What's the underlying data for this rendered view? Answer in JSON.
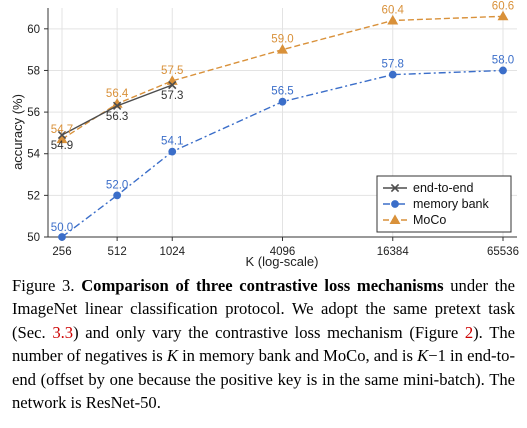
{
  "chart_data": {
    "type": "line",
    "title": "",
    "xlabel": "K (log-scale)",
    "ylabel": "accuracy (%)",
    "xscale": "log",
    "x_ticks": [
      256,
      512,
      1024,
      4096,
      16384,
      65536
    ],
    "x_tick_labels": [
      "256",
      "512",
      "1024",
      "4096",
      "16384",
      "65536"
    ],
    "ylim": [
      50,
      61
    ],
    "y_ticks": [
      50,
      52,
      54,
      56,
      58,
      60
    ],
    "y_tick_labels": [
      "50",
      "52",
      "54",
      "56",
      "58",
      "60"
    ],
    "grid": true,
    "legend_position": "lower-right",
    "series": [
      {
        "name": "end-to-end",
        "color": "#4d4d4d",
        "marker": "x",
        "line_style": "solid",
        "x": [
          256,
          512,
          1024
        ],
        "values": [
          54.9,
          56.3,
          57.3
        ],
        "labels": [
          "54.9",
          "56.3",
          "57.3"
        ]
      },
      {
        "name": "memory bank",
        "color": "#3b6ec9",
        "marker": "circle",
        "line_style": "dashdot",
        "x": [
          256,
          512,
          1024,
          4096,
          16384,
          65536
        ],
        "values": [
          50.0,
          52.0,
          54.1,
          56.5,
          57.8,
          58.0
        ],
        "labels": [
          "50.0",
          "52.0",
          "54.1",
          "56.5",
          "57.8",
          "58.0"
        ]
      },
      {
        "name": "MoCo",
        "color": "#d9913a",
        "marker": "triangle",
        "line_style": "dashed",
        "x": [
          256,
          512,
          1024,
          4096,
          16384,
          65536
        ],
        "values": [
          54.7,
          56.4,
          57.5,
          59.0,
          60.4,
          60.6
        ],
        "labels": [
          "54.7",
          "56.4",
          "57.5",
          "59.0",
          "60.4",
          "60.6"
        ]
      }
    ]
  },
  "caption": {
    "figure_label": "Figure 3.",
    "bold_title": "Comparison of three contrastive loss mechanisms",
    "seg1": " under the ImageNet linear classification protocol. We adopt the same pretext task (Sec. ",
    "ref_section": "3.3",
    "seg2": ") and only vary the contrastive loss mechanism (Figure ",
    "ref_figure": "2",
    "seg3": "). The number of negatives is ",
    "var_k1": "K",
    "seg4": " in memory bank and MoCo, and is ",
    "var_k2": "K",
    "seg5": "−1 in end-to-end (offset by one because the positive key is in the same mini-batch). The network is ResNet-50."
  }
}
